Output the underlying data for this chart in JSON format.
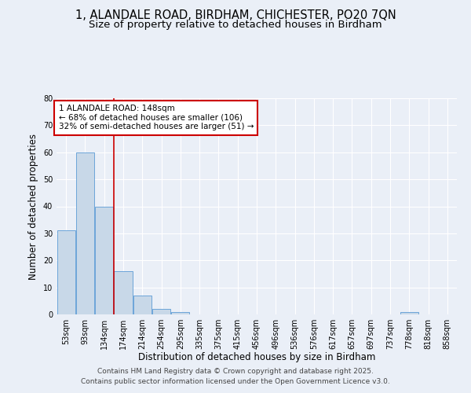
{
  "title_line1": "1, ALANDALE ROAD, BIRDHAM, CHICHESTER, PO20 7QN",
  "title_line2": "Size of property relative to detached houses in Birdham",
  "xlabel": "Distribution of detached houses by size in Birdham",
  "ylabel": "Number of detached properties",
  "categories": [
    "53sqm",
    "93sqm",
    "134sqm",
    "174sqm",
    "214sqm",
    "254sqm",
    "295sqm",
    "335sqm",
    "375sqm",
    "415sqm",
    "456sqm",
    "496sqm",
    "536sqm",
    "576sqm",
    "617sqm",
    "657sqm",
    "697sqm",
    "737sqm",
    "778sqm",
    "818sqm",
    "858sqm"
  ],
  "values": [
    31,
    60,
    40,
    16,
    7,
    2,
    1,
    0,
    0,
    0,
    0,
    0,
    0,
    0,
    0,
    0,
    0,
    0,
    1,
    0,
    0
  ],
  "bar_color": "#c8d8e8",
  "bar_edge_color": "#5b9bd5",
  "vline_index": 2,
  "vline_color": "#cc0000",
  "ylim": [
    0,
    80
  ],
  "yticks": [
    0,
    10,
    20,
    30,
    40,
    50,
    60,
    70,
    80
  ],
  "annotation_title": "1 ALANDALE ROAD: 148sqm",
  "annotation_line2": "← 68% of detached houses are smaller (106)",
  "annotation_line3": "32% of semi-detached houses are larger (51) →",
  "annotation_box_color": "#cc0000",
  "footer_line1": "Contains HM Land Registry data © Crown copyright and database right 2025.",
  "footer_line2": "Contains public sector information licensed under the Open Government Licence v3.0.",
  "bg_color": "#eaeff7",
  "plot_bg_color": "#eaeff7",
  "grid_color": "#ffffff",
  "title_fontsize": 10.5,
  "subtitle_fontsize": 9.5,
  "axis_label_fontsize": 8.5,
  "tick_fontsize": 7,
  "footer_fontsize": 6.5,
  "annotation_fontsize": 7.5
}
